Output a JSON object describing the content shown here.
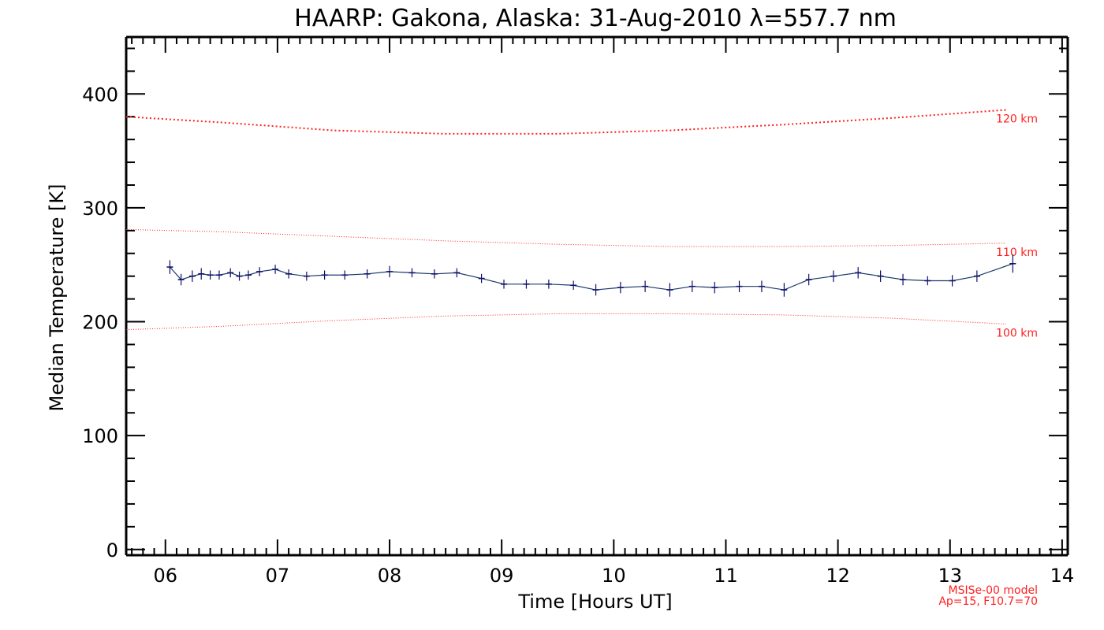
{
  "chart_data": {
    "type": "line",
    "title": "HAARP: Gakona,  Alaska: 31-Aug-2010 λ=557.7 nm",
    "xlabel": "Time [Hours UT]",
    "ylabel": "Median Temperature [K]",
    "xlim": [
      5.65,
      14.05
    ],
    "ylim": [
      -5,
      450
    ],
    "x_ticks": [
      6,
      7,
      8,
      9,
      10,
      11,
      12,
      13,
      14
    ],
    "x_tick_labels": [
      "06",
      "07",
      "08",
      "09",
      "10",
      "11",
      "12",
      "13",
      "14"
    ],
    "y_ticks": [
      0,
      100,
      200,
      300,
      400
    ],
    "y_tick_labels": [
      "0",
      "100",
      "200",
      "300",
      "400"
    ],
    "grid": false,
    "colors": {
      "data_line": "#1a3a6b",
      "data_points": "#10106a",
      "model": "#ff2020",
      "axes": "#000000"
    },
    "series": [
      {
        "x": [
          6.04,
          6.14,
          6.24,
          6.32,
          6.4,
          6.48,
          6.58,
          6.66,
          6.74,
          6.84,
          6.98,
          7.1,
          7.26,
          7.42,
          7.6,
          7.8,
          8.0,
          8.2,
          8.4,
          8.6,
          8.82,
          9.02,
          9.22,
          9.42,
          9.64,
          9.84,
          10.06,
          10.28,
          10.5,
          10.7,
          10.9,
          11.12,
          11.32,
          11.52,
          11.74,
          11.96,
          12.18,
          12.38,
          12.58,
          12.8,
          13.02,
          13.24,
          13.56
        ],
        "y": [
          248,
          237,
          240,
          242,
          241,
          241,
          243,
          240,
          241,
          244,
          246,
          242,
          240,
          241,
          241,
          242,
          244,
          243,
          242,
          243,
          238,
          233,
          233,
          233,
          232,
          228,
          230,
          231,
          228,
          231,
          230,
          231,
          231,
          228,
          237,
          240,
          243,
          240,
          237,
          236,
          236,
          240,
          251
        ],
        "errors": [
          6,
          5,
          5,
          5,
          4,
          4,
          4,
          4,
          4,
          4,
          4,
          4,
          4,
          4,
          4,
          4,
          5,
          4,
          4,
          4,
          4,
          4,
          4,
          4,
          4,
          5,
          5,
          5,
          6,
          5,
          5,
          5,
          5,
          6,
          5,
          5,
          5,
          5,
          5,
          4,
          5,
          5,
          8
        ]
      }
    ],
    "model_curves": [
      {
        "label": "120 km",
        "x": [
          5.65,
          6.5,
          7.5,
          8.5,
          9.5,
          10.5,
          11.5,
          12.5,
          13.5
        ],
        "y": [
          380,
          375,
          368,
          365,
          365,
          368,
          373,
          379,
          386
        ]
      },
      {
        "label": "110 km",
        "x": [
          5.65,
          6.5,
          7.5,
          8.5,
          9.5,
          10.5,
          11.5,
          12.5,
          13.5
        ],
        "y": [
          281,
          279,
          275,
          271,
          268,
          266,
          266,
          267,
          269
        ]
      },
      {
        "label": "100 km",
        "x": [
          5.65,
          6.5,
          7.5,
          8.5,
          9.5,
          10.5,
          11.5,
          12.5,
          13.5
        ],
        "y": [
          193,
          196,
          201,
          205,
          207,
          207,
          206,
          203,
          198
        ]
      }
    ],
    "model_note": [
      "MSISe-00 model",
      "Ap=15, F10.7=70"
    ]
  }
}
